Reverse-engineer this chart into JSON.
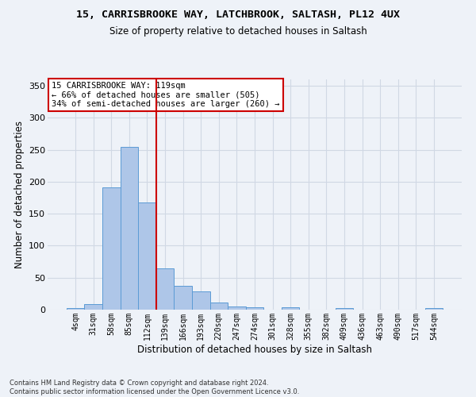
{
  "title1": "15, CARRISBROOKE WAY, LATCHBROOK, SALTASH, PL12 4UX",
  "title2": "Size of property relative to detached houses in Saltash",
  "xlabel": "Distribution of detached houses by size in Saltash",
  "ylabel": "Number of detached properties",
  "footnote": "Contains HM Land Registry data © Crown copyright and database right 2024.\nContains public sector information licensed under the Open Government Licence v3.0.",
  "bar_labels": [
    "4sqm",
    "31sqm",
    "58sqm",
    "85sqm",
    "112sqm",
    "139sqm",
    "166sqm",
    "193sqm",
    "220sqm",
    "247sqm",
    "274sqm",
    "301sqm",
    "328sqm",
    "355sqm",
    "382sqm",
    "409sqm",
    "436sqm",
    "463sqm",
    "490sqm",
    "517sqm",
    "544sqm"
  ],
  "bar_values": [
    2,
    9,
    191,
    255,
    167,
    65,
    37,
    28,
    11,
    5,
    4,
    0,
    4,
    0,
    0,
    3,
    0,
    0,
    0,
    0,
    2
  ],
  "bar_color": "#aec6e8",
  "bar_edge_color": "#5b9bd5",
  "grid_color": "#d0d8e4",
  "background_color": "#eef2f8",
  "vline_x": 4.5,
  "vline_color": "#cc0000",
  "annotation_line1": "15 CARRISBROOKE WAY: 119sqm",
  "annotation_line2": "← 66% of detached houses are smaller (505)",
  "annotation_line3": "34% of semi-detached houses are larger (260) →",
  "annotation_box_color": "white",
  "annotation_box_edgecolor": "#cc0000",
  "ylim": [
    0,
    360
  ],
  "yticks": [
    0,
    50,
    100,
    150,
    200,
    250,
    300,
    350
  ],
  "title1_fontsize": 9.5,
  "title2_fontsize": 8.5,
  "xlabel_fontsize": 8.5,
  "ylabel_fontsize": 8.5,
  "footnote_fontsize": 6,
  "tick_fontsize": 8,
  "xtick_fontsize": 7
}
